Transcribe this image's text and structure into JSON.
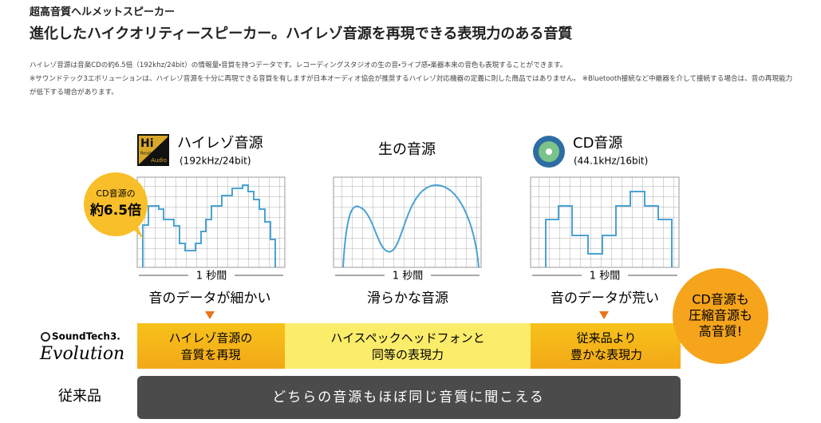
{
  "header": {
    "kicker": "超高音質ヘルメットスピーカー",
    "title": "進化したハイクオリティースピーカー。ハイレゾ音源を再現できる表現力のある音質"
  },
  "notes": [
    "ハイレゾ音源は音楽CDの約6.5倍（192khz/24bit）の情報量・音質を持つデータです。レコーディングスタジオの生の音・ライブ感・楽器本来の音色も表現することができます。",
    "※サウンドテック3エボリューションは、ハイレゾ音源を十分に再現できる音質を有しますが日本オーディオ協会が推奨するハイレゾ対応機器の定義に則した商品ではありません。 ※Bluetooth接続など中継器を介して接続する場合は、音の再現能力が低下する場合があります。"
  ],
  "hires_logo": {
    "mark": "Hi",
    "sub": "Resolution",
    "audio": "Audio"
  },
  "badge": {
    "lines": [
      "CD音源の",
      "約6.5倍"
    ]
  },
  "panels": [
    {
      "title": "ハイレゾ音源",
      "subtitle": "(192kHz/24bit)",
      "time": "1 秒間",
      "caption": "音のデータが細かい"
    },
    {
      "title": "生の音源",
      "time": "1 秒間",
      "caption": "滑らかな音源"
    },
    {
      "title": "CD音源",
      "subtitle": "(44.1kHz/16bit)",
      "time": "1 秒間",
      "caption": "音のデータが荒い"
    }
  ],
  "brand": {
    "name": "SoundTech3.",
    "edition": "Evolution"
  },
  "evolution_row": [
    [
      "ハイレゾ音源の",
      "音質を再現"
    ],
    [
      "ハイスペックヘッドフォンと",
      "同等の表現力"
    ],
    [
      "従来品より",
      "豊かな表現力"
    ]
  ],
  "callout": {
    "lines": [
      "CD音源も",
      "圧縮音源も",
      "高音質!"
    ]
  },
  "legacy": {
    "label": "従来品",
    "text": "どちらの音源もほぼ同じ音質に聞こえる"
  }
}
